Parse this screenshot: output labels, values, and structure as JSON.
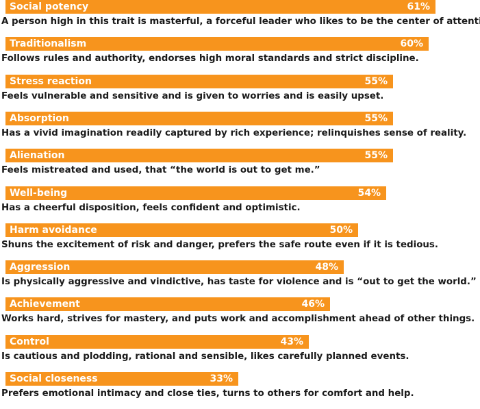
{
  "colors": {
    "bar": "#f7941d",
    "bar_text": "#ffffff",
    "description_text": "#1a1a1a"
  },
  "chart_data": {
    "type": "bar",
    "orientation": "horizontal",
    "unit": "%",
    "xlim": [
      0,
      61
    ],
    "grid": false,
    "legend": "none",
    "categories": [
      "Social potency",
      "Traditionalism",
      "Stress reaction",
      "Absorption",
      "Alienation",
      "Well-being",
      "Harm avoidance",
      "Aggression",
      "Achievement",
      "Control",
      "Social closeness"
    ],
    "values": [
      61,
      60,
      55,
      55,
      55,
      54,
      50,
      48,
      46,
      43,
      33
    ],
    "value_labels": [
      "61%",
      "60%",
      "55%",
      "55%",
      "55%",
      "54%",
      "50%",
      "48%",
      "46%",
      "43%",
      "33%"
    ],
    "descriptions": [
      "A person high in this trait is masterful, a forceful leader who likes to be the center of attention.",
      "Follows rules and authority, endorses high moral standards and strict discipline.",
      "Feels vulnerable and sensitive and is given to worries and is easily upset.",
      "Has a vivid imagination readily captured by rich experience; relinquishes sense of reality.",
      "Feels mistreated and used, that “the world is out to get me.”",
      "Has a cheerful disposition, feels confident and optimistic.",
      "Shuns the excitement of risk and danger, prefers the safe route even if it is tedious.",
      "Is physically aggressive and vindictive, has taste for violence and is “out to get the world.”",
      "Works hard, strives for mastery, and puts work and accomplishment ahead of other things.",
      "Is cautious and plodding, rational and sensible, likes carefully planned events.",
      "Prefers emotional intimacy and close ties, turns to others for comfort and help."
    ]
  }
}
